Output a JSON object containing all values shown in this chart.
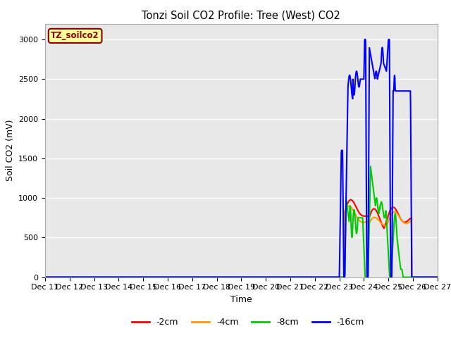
{
  "title": "Tonzi Soil CO2 Profile: Tree (West) CO2",
  "xlabel": "Time",
  "ylabel": "Soil CO2 (mV)",
  "ylim": [
    0,
    3200
  ],
  "yticks": [
    0,
    500,
    1000,
    1500,
    2000,
    2500,
    3000
  ],
  "bg_color": "#e8e8e8",
  "fig_color": "#ffffff",
  "legend_label": "TZ_soilco2",
  "legend_box_color": "#ffff99",
  "legend_box_edge": "#8b0000",
  "series_labels": [
    "-2cm",
    "-4cm",
    "-8cm",
    "-16cm"
  ],
  "series_colors": [
    "#ff0000",
    "#ff9900",
    "#00cc00",
    "#0000ff"
  ],
  "line_width": 1.5,
  "xtick_days": [
    11,
    12,
    13,
    14,
    15,
    16,
    17,
    18,
    19,
    20,
    21,
    22,
    23,
    24,
    25,
    26,
    27
  ],
  "figsize": [
    6.4,
    4.8
  ],
  "dpi": 100
}
